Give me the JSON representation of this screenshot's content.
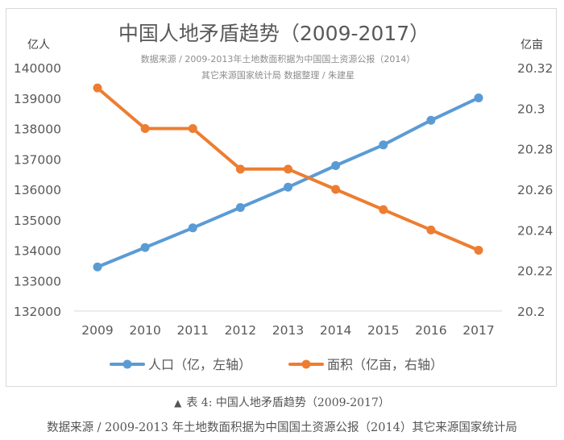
{
  "chart_data": {
    "type": "line",
    "title": "中国人地矛盾趋势（2009-2017）",
    "subtitle_lines": [
      "数据来源 / 2009-2013年土地数面积据为中国国土资源公报（2014）",
      "其它来源国家统计局  数据整理 / 朱建星"
    ],
    "x": [
      "2009",
      "2010",
      "2011",
      "2012",
      "2013",
      "2014",
      "2015",
      "2016",
      "2017"
    ],
    "left_axis": {
      "unit_label": "亿人",
      "ylim": [
        132000,
        140000
      ],
      "ticks": [
        "140000",
        "139000",
        "138000",
        "137000",
        "136000",
        "135000",
        "134000",
        "133000",
        "132000"
      ]
    },
    "right_axis": {
      "unit_label": "亿亩",
      "ylim": [
        20.2,
        20.32
      ],
      "ticks": [
        "20.32",
        "20.3",
        "20.28",
        "20.26",
        "20.24",
        "20.22",
        "20.2"
      ]
    },
    "series": [
      {
        "name": "人口（亿，左轴）",
        "axis": "left",
        "color": "#5b9bd5",
        "values": [
          133450,
          134091,
          134735,
          135404,
          136072,
          136782,
          137462,
          138271,
          139008
        ]
      },
      {
        "name": "面积（亿亩，右轴）",
        "axis": "right",
        "color": "#ed7d31",
        "values": [
          20.31,
          20.29,
          20.29,
          20.27,
          20.27,
          20.26,
          20.25,
          20.24,
          20.23
        ]
      }
    ],
    "grid": false,
    "legend": "bottom"
  },
  "caption": {
    "marker": "▲",
    "line1": "表 4:  中国人地矛盾趋势（2009-2017）",
    "line2": "数据来源  / 2009-2013 年土地数面积据为中国国土资源公报（2014）其它来源国家统计局"
  }
}
